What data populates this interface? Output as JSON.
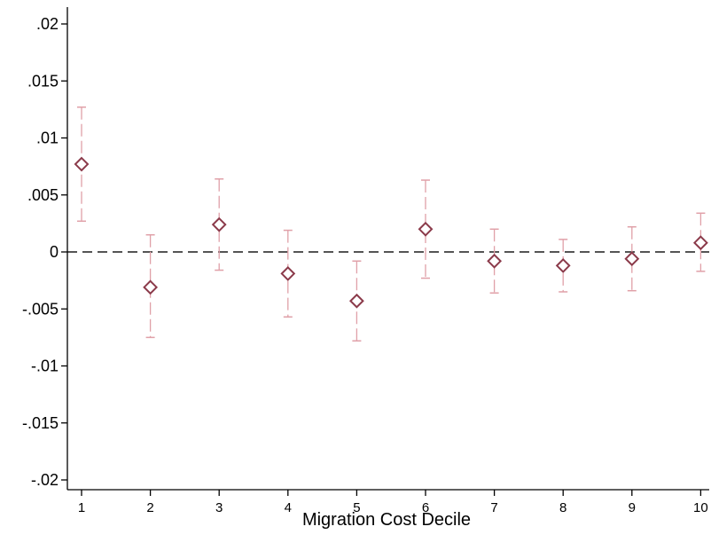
{
  "chart_data": {
    "type": "scatter",
    "xlabel": "Migration Cost Decile",
    "ylabel": "",
    "categories": [
      "1",
      "2",
      "3",
      "4",
      "5",
      "6",
      "7",
      "8",
      "9",
      "10"
    ],
    "ylim": [
      -0.02,
      0.02
    ],
    "yticks": [
      ".02",
      ".015",
      ".01",
      ".005",
      "0",
      "-.005",
      "-.01",
      "-.015",
      "-.02"
    ],
    "ytick_values": [
      0.02,
      0.015,
      0.01,
      0.005,
      0,
      -0.005,
      -0.01,
      -0.015,
      -0.02
    ],
    "reference_line": 0,
    "grid": false,
    "series": [
      {
        "values": [
          0.0077,
          -0.0031,
          0.0024,
          -0.0019,
          -0.0043,
          0.002,
          -0.0008,
          -0.0012,
          -0.0006,
          0.0008
        ],
        "ci_lower": [
          0.0027,
          -0.0075,
          -0.0016,
          -0.0057,
          -0.0078,
          -0.0023,
          -0.0036,
          -0.0035,
          -0.0034,
          -0.0017
        ],
        "ci_upper": [
          0.0127,
          0.0015,
          0.0064,
          0.0019,
          -0.0008,
          0.0063,
          0.002,
          0.0011,
          0.0022,
          0.0034
        ]
      }
    ],
    "colors": {
      "marker": "#8b3a4a",
      "ci": "#e0a0a8",
      "reference": "#555555",
      "axis": "#000000"
    }
  }
}
